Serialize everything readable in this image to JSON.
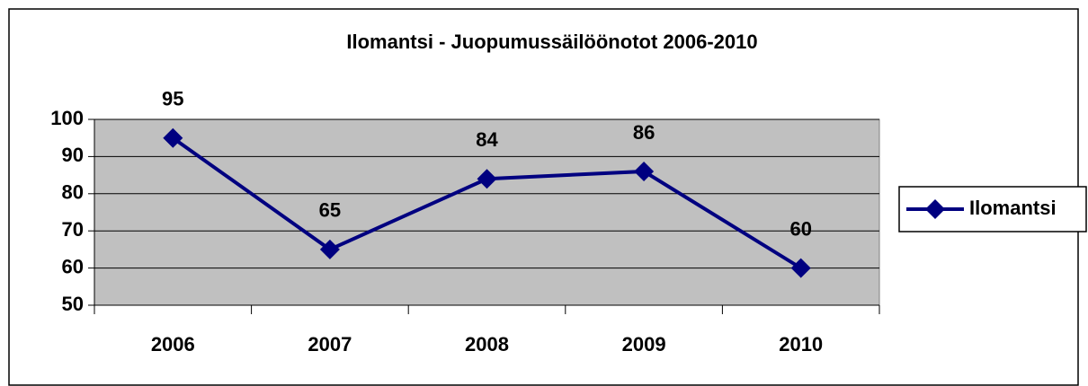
{
  "chart_data": {
    "type": "line",
    "title": "Ilomantsi - Juopumussäilöönotot 2006-2010",
    "categories": [
      "2006",
      "2007",
      "2008",
      "2009",
      "2010"
    ],
    "series": [
      {
        "name": "Ilomantsi",
        "color": "#000080",
        "values": [
          95,
          65,
          84,
          86,
          60
        ]
      }
    ],
    "ylim": [
      50,
      100
    ],
    "yticks": [
      50,
      60,
      70,
      80,
      90,
      100
    ],
    "grid": true,
    "plot_background": "#c0c0c0",
    "legend": "right"
  }
}
